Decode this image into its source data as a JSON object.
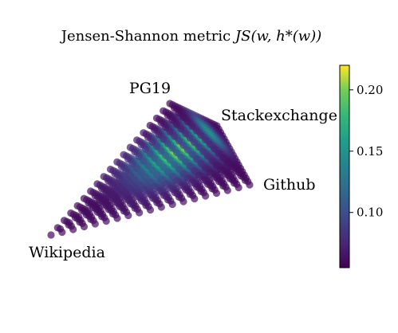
{
  "chart_data": {
    "type": "scatter",
    "title": "Jensen-Shannon metric ",
    "title_math": "JS(w, h*(w))",
    "vertices": {
      "top": "PG19",
      "right_top": "Stackexchange",
      "right_bottom": "Github",
      "left": "Wikipedia"
    },
    "colorbar": {
      "cmap": "viridis",
      "range": [
        0.055,
        0.22
      ],
      "ticks": [
        {
          "value": 0.1,
          "label": "0.10"
        },
        {
          "value": 0.15,
          "label": "0.15"
        },
        {
          "value": 0.2,
          "label": "0.20"
        }
      ]
    },
    "simplex_layout": "projected 3-simplex over mixture weights w",
    "grid_steps": 18,
    "value_model": {
      "peak_value": 0.21,
      "peak_weights": [
        0.18,
        0.34,
        0.26,
        0.22
      ],
      "min_value_at_vertices": 0.06
    }
  }
}
